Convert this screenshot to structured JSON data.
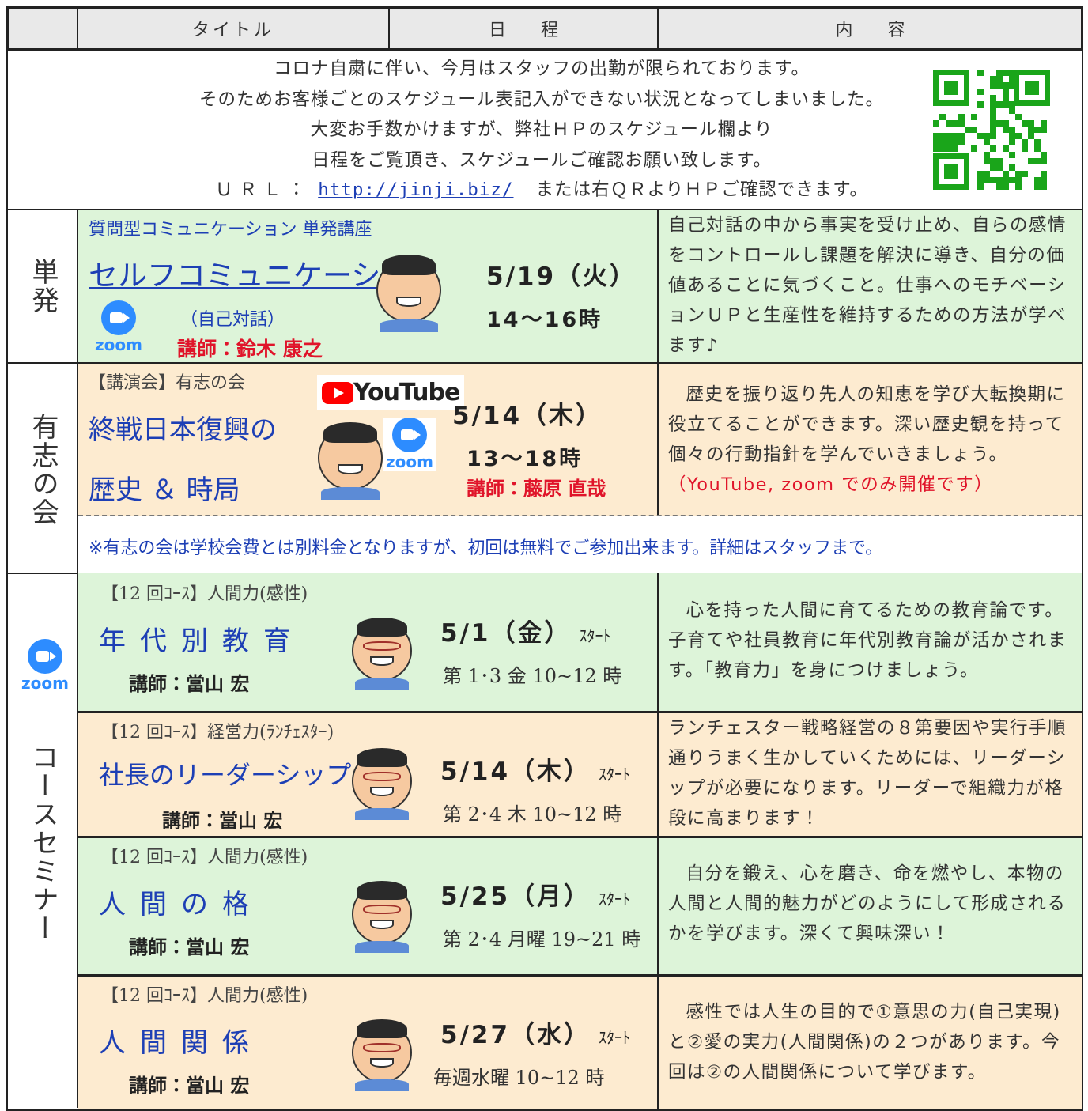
{
  "header": {
    "columns": [
      "タイトル",
      "日　　程",
      "内　　容"
    ]
  },
  "notice": {
    "lines": [
      "コロナ自粛に伴い、今月はスタッフの出勤が限られております。",
      "そのためお客様ごとのスケジュール表記入ができない状況となってしまいました。",
      "大変お手数かけますが、弊社ＨＰのスケジュール欄より",
      "日程をご覧頂き、スケジュールご確認お願い致します。"
    ],
    "url_label": "ＵＲＬ：",
    "url": "http://jinji.biz/",
    "url_suffix": "または右ＱＲよりＨＰご確認できます。"
  },
  "single": {
    "label": "単発",
    "subtitle": "質問型コミュニケーション 単発講座",
    "title": "セルフコミュニケーション",
    "platform": "zoom",
    "subtitle2": "（自己対話）",
    "lecturer": "講師：鈴木 康之",
    "date": "5/19（火）",
    "time": "14～16時",
    "description": "自己対話の中から事実を受け止め、自らの感情をコントロールし課題を解決に導き、自分の価値あることに気づくこと。仕事へのモチベーションＵＰと生産性を維持するための方法が学べます♪"
  },
  "volunteer": {
    "label": "有志の会",
    "tag": "【講演会】有志の会",
    "title_lines": [
      "終戦日本復興の",
      "歴史 ＆ 時局"
    ],
    "platforms": [
      "YouTube",
      "zoom"
    ],
    "date": "5/14（木）",
    "time": "13～18時",
    "lecturer": "講師：藤原 直哉",
    "description": "歴史を振り返り先人の知恵を学び大転換期に役立てることができます。深い歴史観を持って個々の行動指針を学んでいきましょう。",
    "description_note": "（YouTube, zoom でのみ開催です）",
    "note": "※有志の会は学校会費とは別料金となりますが、初回は無料でご参加出来ます。詳細はスタッフまで。"
  },
  "course": {
    "label": "コースセミナー",
    "platform": "zoom",
    "items": [
      {
        "tag": "【12 回ｺｰｽ】人間力(感性)",
        "title": "年代別教育",
        "lecturer": "講師：當山 宏",
        "date": "5/1（金）",
        "start": "ｽﾀｰﾄ",
        "schedule": "第 1･3 金 10~12 時",
        "description": "心を持った人間に育てるための教育論です。子育てや社員教育に年代別教育論が活かされます。「教育力」を身につけましょう。"
      },
      {
        "tag": "【12 回ｺｰｽ】経営力(ﾗﾝﾁｪｽﾀｰ)",
        "title": "社長のリーダーシップ",
        "lecturer": "講師：當山 宏",
        "date": "5/14（木）",
        "start": "ｽﾀｰﾄ",
        "schedule": "第 2･4 木 10~12 時",
        "description": "ランチェスター戦略経営の８第要因や実行手順通りうまく生かしていくためには、リーダーシップが必要になります。リーダーで組織力が格段に高まります！"
      },
      {
        "tag": "【12 回ｺｰｽ】人間力(感性)",
        "title": "人間の格",
        "lecturer": "講師：當山 宏",
        "date": "5/25（月）",
        "start": "ｽﾀｰﾄ",
        "schedule": "第 2･4 月曜 19~21 時",
        "description": "自分を鍛え、心を磨き、命を燃やし、本物の人間と人間的魅力がどのようにして形成されるかを学びます。深くて興味深い！"
      },
      {
        "tag": "【12 回ｺｰｽ】人間力(感性)",
        "title": "人間関係",
        "lecturer": "講師：當山 宏",
        "date": "5/27（水）",
        "start": "ｽﾀｰﾄ",
        "schedule": "毎週水曜 10~12 時",
        "description": "感性では人生の目的で①意思の力(自己実現)と②愛の実力(人間関係)の２つがあります。今回は②の人間関係について学びます。"
      }
    ]
  }
}
